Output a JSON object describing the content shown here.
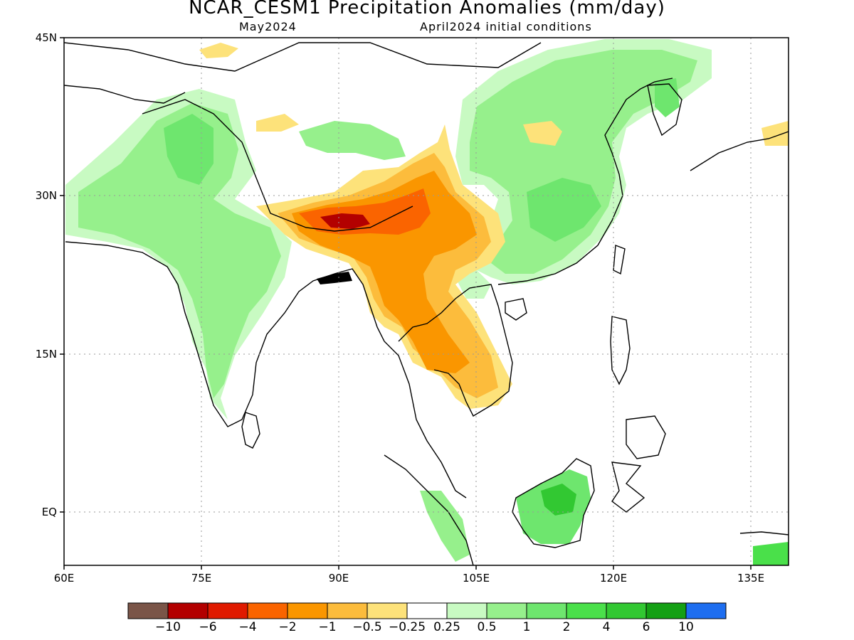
{
  "title": "NCAR_CESM1 Precipitation Anomalies (mm/day)",
  "subtitle_left": "May2024",
  "subtitle_right": "April2024 initial conditions",
  "axes": {
    "lon_ticks": [
      "60E",
      "75E",
      "90E",
      "105E",
      "120E",
      "135E"
    ],
    "lat_ticks": [
      "45N",
      "30N",
      "15N",
      "EQ"
    ]
  },
  "colorbar": {
    "labels": [
      "-10",
      "-6",
      "-4",
      "-2",
      "-1",
      "-0.5",
      "-0.25",
      "0.25",
      "0.5",
      "1",
      "2",
      "4",
      "6",
      "10"
    ],
    "colors": [
      "#7a5548",
      "#b30000",
      "#e01a00",
      "#fa6400",
      "#fa9600",
      "#fcbc3c",
      "#fde27a",
      "#ffffff",
      "#c8fac2",
      "#96f08c",
      "#6ee66e",
      "#4ae04a",
      "#32c832",
      "#14a014",
      "#1e6ef0"
    ]
  },
  "colors": {
    "wet_light": "#c8fac2",
    "wet_mid": "#96f08c",
    "wet_strong": "#6ee66e",
    "wet_heavy": "#32c832",
    "dry_light": "#fde27a",
    "dry_mid": "#fcbc3c",
    "dry_strong": "#fa9600",
    "dry_heavy": "#fa6400",
    "dry_extreme": "#b30000"
  }
}
